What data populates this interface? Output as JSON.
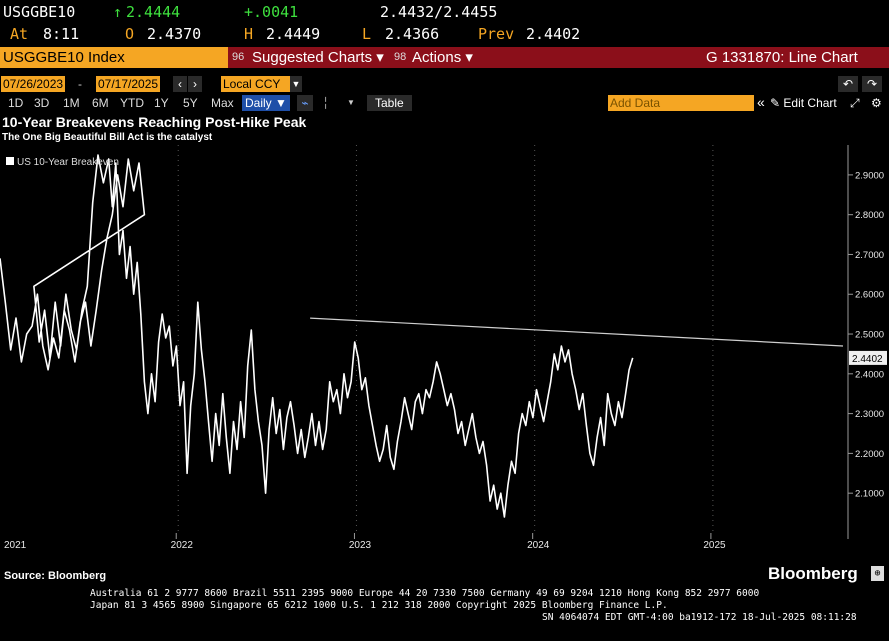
{
  "quote": {
    "ticker": "USGGBE10",
    "last_arrow": "↑",
    "last": "2.4444",
    "change": "+.0041",
    "bid_ask": "2.4432/2.4455",
    "at_label": "At",
    "at_time": "8:11",
    "open_label": "O",
    "open": "2.4370",
    "high_label": "H",
    "high": "2.4449",
    "low_label": "L",
    "low": "2.4366",
    "prev_label": "Prev",
    "prev": "2.4402"
  },
  "menu": {
    "security": "USGGBE10 Index",
    "suggested": "Suggested Charts ▾",
    "actions": "Actions ▾",
    "chart_id": "G 1331870: Line Chart",
    "num_suggested": "96",
    "num_actions": "98"
  },
  "toolbar": {
    "start_date": "07/26/2023",
    "end_date": "07/17/2025",
    "currency": "Local CCY",
    "periods": [
      "1D",
      "3D",
      "1M",
      "6M",
      "YTD",
      "1Y",
      "5Y",
      "Max"
    ],
    "frequency": "Daily ▼",
    "table": "Table",
    "add_data": "Add Data",
    "edit_chart": "Edit Chart",
    "collapse": "«"
  },
  "colors": {
    "amber": "#f5a623",
    "menu_red": "#8b0f1a",
    "up_green": "#3ee03e",
    "line": "#ffffff",
    "background": "#000000"
  },
  "chart_data": {
    "type": "line",
    "title": "10-Year Breakevens Reaching Post-Hike Peak",
    "subtitle": "The One Big Beautiful Bill Act is the catalyst",
    "legend": "US 10-Year Breakeven",
    "legend_placement": "top-left",
    "ylim": [
      2.02,
      2.95
    ],
    "y_ticks": [
      "2.9000",
      "2.8000",
      "2.7000",
      "2.6000",
      "2.5000",
      "2.4000",
      "2.3000",
      "2.2000",
      "2.1000"
    ],
    "x_labels": [
      "2021",
      "2022",
      "2023",
      "2024",
      "2025"
    ],
    "last_value_label": "2.4402",
    "grid": "vertical dotted",
    "source": "Source: Bloomberg",
    "series": [
      {
        "values": [
          [
            2021.83,
            2.62
          ],
          [
            2021.86,
            2.48
          ],
          [
            2021.89,
            2.56
          ],
          [
            2021.92,
            2.44
          ],
          [
            2021.95,
            2.58
          ],
          [
            2021.98,
            2.47
          ],
          [
            2022.01,
            2.6
          ],
          [
            2022.04,
            2.51
          ],
          [
            2022.07,
            2.46
          ],
          [
            2022.1,
            2.56
          ],
          [
            2022.13,
            2.62
          ],
          [
            2022.16,
            2.83
          ],
          [
            2022.19,
            2.95
          ],
          [
            2022.22,
            2.88
          ],
          [
            2022.25,
            2.94
          ],
          [
            2022.27,
            2.82
          ],
          [
            2022.29,
            2.93
          ],
          [
            2022.31,
            2.7
          ],
          [
            2022.33,
            2.76
          ],
          [
            2022.35,
            2.64
          ],
          [
            2022.37,
            2.72
          ],
          [
            2022.39,
            2.6
          ],
          [
            2022.41,
            2.68
          ],
          [
            2022.43,
            2.55
          ],
          [
            2022.45,
            2.38
          ],
          [
            2022.47,
            2.3
          ],
          [
            2022.49,
            2.4
          ],
          [
            2022.51,
            2.33
          ],
          [
            2022.53,
            2.48
          ],
          [
            2022.55,
            2.55
          ],
          [
            2022.57,
            2.49
          ],
          [
            2022.59,
            2.52
          ],
          [
            2022.61,
            2.42
          ],
          [
            2022.63,
            2.47
          ],
          [
            2022.65,
            2.32
          ],
          [
            2022.67,
            2.38
          ],
          [
            2022.69,
            2.15
          ],
          [
            2022.71,
            2.32
          ],
          [
            2022.73,
            2.4
          ],
          [
            2022.75,
            2.58
          ],
          [
            2022.77,
            2.46
          ],
          [
            2022.79,
            2.38
          ],
          [
            2022.81,
            2.28
          ],
          [
            2022.83,
            2.18
          ],
          [
            2022.85,
            2.3
          ],
          [
            2022.87,
            2.22
          ],
          [
            2022.89,
            2.35
          ],
          [
            2022.91,
            2.24
          ],
          [
            2022.93,
            2.15
          ],
          [
            2022.95,
            2.28
          ],
          [
            2022.97,
            2.21
          ],
          [
            2022.99,
            2.33
          ],
          [
            2023.01,
            2.24
          ],
          [
            2023.03,
            2.42
          ],
          [
            2023.05,
            2.51
          ],
          [
            2023.07,
            2.36
          ],
          [
            2023.09,
            2.28
          ],
          [
            2023.11,
            2.22
          ],
          [
            2023.13,
            2.1
          ],
          [
            2023.15,
            2.26
          ],
          [
            2023.17,
            2.34
          ],
          [
            2023.19,
            2.25
          ],
          [
            2023.21,
            2.31
          ],
          [
            2023.23,
            2.21
          ],
          [
            2023.25,
            2.29
          ],
          [
            2023.27,
            2.33
          ],
          [
            2023.29,
            2.27
          ],
          [
            2023.31,
            2.2
          ],
          [
            2023.33,
            2.26
          ],
          [
            2023.35,
            2.19
          ],
          [
            2023.37,
            2.24
          ],
          [
            2023.39,
            2.3
          ],
          [
            2023.41,
            2.22
          ],
          [
            2023.43,
            2.28
          ],
          [
            2023.45,
            2.21
          ],
          [
            2023.47,
            2.26
          ],
          [
            2023.49,
            2.38
          ],
          [
            2023.51,
            2.33
          ],
          [
            2023.53,
            2.36
          ],
          [
            2023.55,
            2.3
          ],
          [
            2023.57,
            2.4
          ],
          [
            2023.59,
            2.34
          ],
          [
            2023.61,
            2.38
          ],
          [
            2023.63,
            2.48
          ],
          [
            2023.65,
            2.44
          ],
          [
            2023.67,
            2.36
          ],
          [
            2023.69,
            2.39
          ],
          [
            2023.71,
            2.32
          ],
          [
            2023.73,
            2.27
          ],
          [
            2023.75,
            2.22
          ],
          [
            2023.77,
            2.18
          ],
          [
            2023.79,
            2.21
          ],
          [
            2023.81,
            2.27
          ],
          [
            2023.83,
            2.19
          ],
          [
            2023.85,
            2.16
          ],
          [
            2023.87,
            2.23
          ],
          [
            2023.89,
            2.28
          ],
          [
            2023.91,
            2.34
          ],
          [
            2023.93,
            2.3
          ],
          [
            2023.95,
            2.26
          ],
          [
            2023.97,
            2.33
          ],
          [
            2023.99,
            2.35
          ],
          [
            2024.01,
            2.3
          ],
          [
            2024.03,
            2.36
          ],
          [
            2024.05,
            2.34
          ],
          [
            2024.07,
            2.38
          ],
          [
            2024.09,
            2.43
          ],
          [
            2024.11,
            2.4
          ],
          [
            2024.13,
            2.36
          ],
          [
            2024.15,
            2.32
          ],
          [
            2024.17,
            2.35
          ],
          [
            2024.19,
            2.31
          ],
          [
            2024.21,
            2.25
          ],
          [
            2024.23,
            2.28
          ],
          [
            2024.25,
            2.22
          ],
          [
            2024.27,
            2.26
          ],
          [
            2024.29,
            2.3
          ],
          [
            2024.31,
            2.24
          ],
          [
            2024.33,
            2.2
          ],
          [
            2024.35,
            2.23
          ],
          [
            2024.37,
            2.17
          ],
          [
            2024.39,
            2.08
          ],
          [
            2024.41,
            2.12
          ],
          [
            2024.43,
            2.06
          ],
          [
            2024.45,
            2.1
          ],
          [
            2024.47,
            2.04
          ],
          [
            2024.49,
            2.12
          ],
          [
            2024.51,
            2.18
          ],
          [
            2024.53,
            2.15
          ],
          [
            2024.55,
            2.25
          ],
          [
            2024.57,
            2.3
          ],
          [
            2024.59,
            2.27
          ],
          [
            2024.61,
            2.33
          ],
          [
            2024.63,
            2.29
          ],
          [
            2024.65,
            2.36
          ],
          [
            2024.67,
            2.32
          ],
          [
            2024.69,
            2.28
          ],
          [
            2024.71,
            2.33
          ],
          [
            2024.73,
            2.38
          ],
          [
            2024.75,
            2.45
          ],
          [
            2024.77,
            2.41
          ],
          [
            2024.79,
            2.47
          ],
          [
            2024.81,
            2.43
          ],
          [
            2024.83,
            2.46
          ],
          [
            2024.85,
            2.4
          ],
          [
            2024.87,
            2.36
          ],
          [
            2024.89,
            2.31
          ],
          [
            2024.91,
            2.35
          ],
          [
            2024.93,
            2.27
          ],
          [
            2024.95,
            2.2
          ],
          [
            2024.97,
            2.17
          ],
          [
            2024.99,
            2.24
          ],
          [
            2025.01,
            2.29
          ],
          [
            2025.03,
            2.22
          ],
          [
            2025.05,
            2.35
          ],
          [
            2025.07,
            2.3
          ],
          [
            2025.09,
            2.27
          ],
          [
            2025.11,
            2.33
          ],
          [
            2025.13,
            2.29
          ],
          [
            2025.15,
            2.35
          ],
          [
            2025.17,
            2.41
          ],
          [
            2025.19,
            2.44
          ]
        ]
      },
      {
        "values": [
          [
            2022.74,
            2.54
          ],
          [
            2025.73,
            2.47
          ]
        ]
      }
    ]
  },
  "footer": {
    "line1": "Australia 61 2 9777 8600 Brazil 5511 2395 9000 Europe 44 20 7330 7500 Germany 49 69 9204 1210 Hong Kong 852 2977 6000",
    "line2": "Japan 81 3 4565 8900       Singapore 65 6212 1000       U.S. 1 212 318 2000         Copyright 2025 Bloomberg Finance L.P.",
    "line3": "SN 4064074 EDT  GMT-4:00 ba1912-172 18-Jul-2025 08:11:28",
    "brand": "Bloomberg"
  }
}
